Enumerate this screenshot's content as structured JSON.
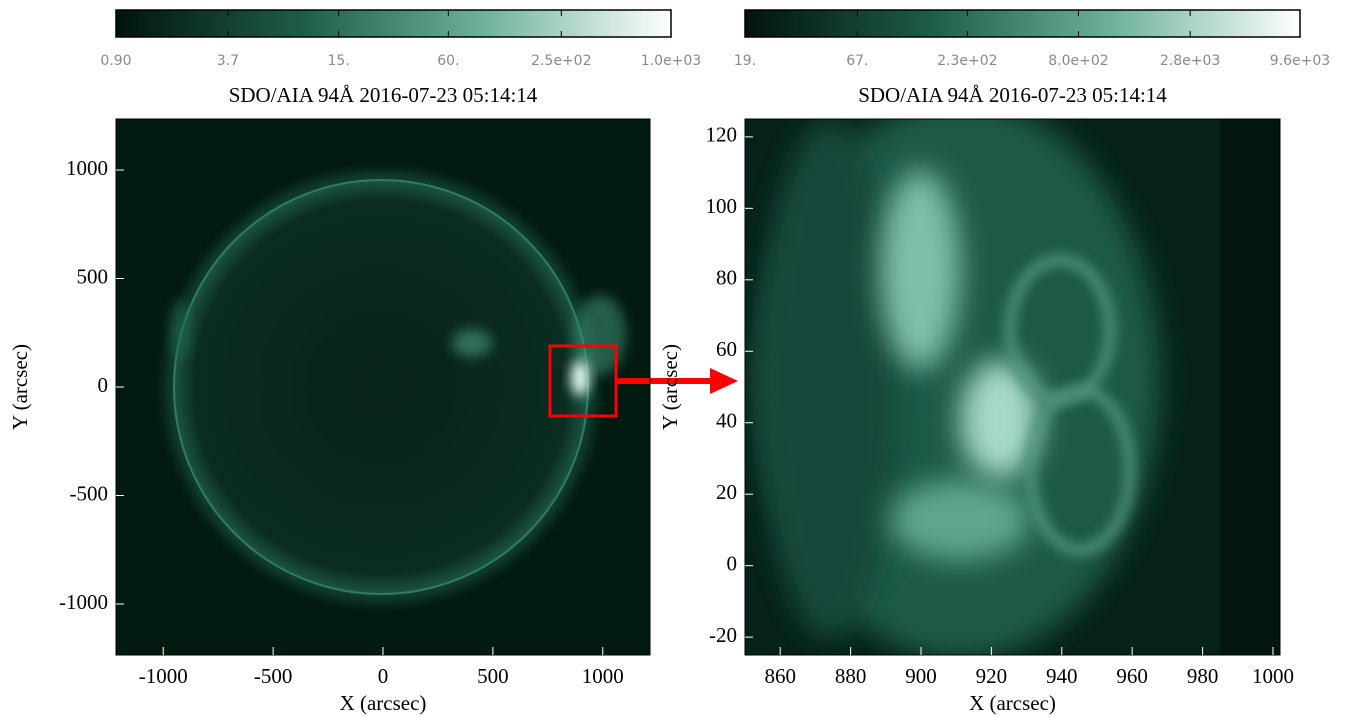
{
  "chart_data": [
    {
      "type": "image",
      "title": "SDO/AIA 94Å  2016-07-23 05:14:14",
      "xlabel": "X (arcsec)",
      "ylabel": "Y (arcsec)",
      "xlim": [
        -1215,
        1215
      ],
      "ylim": [
        -1235,
        1235
      ],
      "xticks": [
        -1000,
        -500,
        0,
        500,
        1000
      ],
      "yticks": [
        -1000,
        -500,
        0,
        500,
        1000
      ],
      "colorbar": {
        "log": true,
        "clim": [
          0.9,
          1000
        ],
        "colormap": [
          "#02140c",
          "#1d5c49",
          "#6fb39c",
          "#ffffff"
        ],
        "ticks": [
          {
            "value": 0.9,
            "label": "0.90"
          },
          {
            "value": 3.7,
            "label": "3.7"
          },
          {
            "value": 15,
            "label": "15."
          },
          {
            "value": 60,
            "label": "60."
          },
          {
            "value": 250,
            "label": "2.5e+02"
          },
          {
            "value": 1000,
            "label": "1.0e+03"
          }
        ]
      }
    },
    {
      "type": "image",
      "title": "SDO/AIA 94Å  2016-07-23 05:14:14",
      "xlabel": "X (arcsec)",
      "ylabel": "Y (arcsec)",
      "xlim": [
        850,
        1002
      ],
      "ylim": [
        -25,
        125
      ],
      "xticks": [
        860,
        880,
        900,
        920,
        940,
        960,
        980,
        1000
      ],
      "yticks": [
        -20,
        0,
        20,
        40,
        60,
        80,
        100,
        120
      ],
      "colorbar": {
        "log": true,
        "clim": [
          19,
          9600
        ],
        "colormap": [
          "#02140c",
          "#1d5c49",
          "#6fb39c",
          "#ffffff"
        ],
        "ticks": [
          {
            "value": 19,
            "label": "19."
          },
          {
            "value": 67,
            "label": "67."
          },
          {
            "value": 230,
            "label": "2.3e+02"
          },
          {
            "value": 800,
            "label": "8.0e+02"
          },
          {
            "value": 2800,
            "label": "2.8e+03"
          },
          {
            "value": 9600,
            "label": "9.6e+03"
          }
        ]
      }
    }
  ]
}
